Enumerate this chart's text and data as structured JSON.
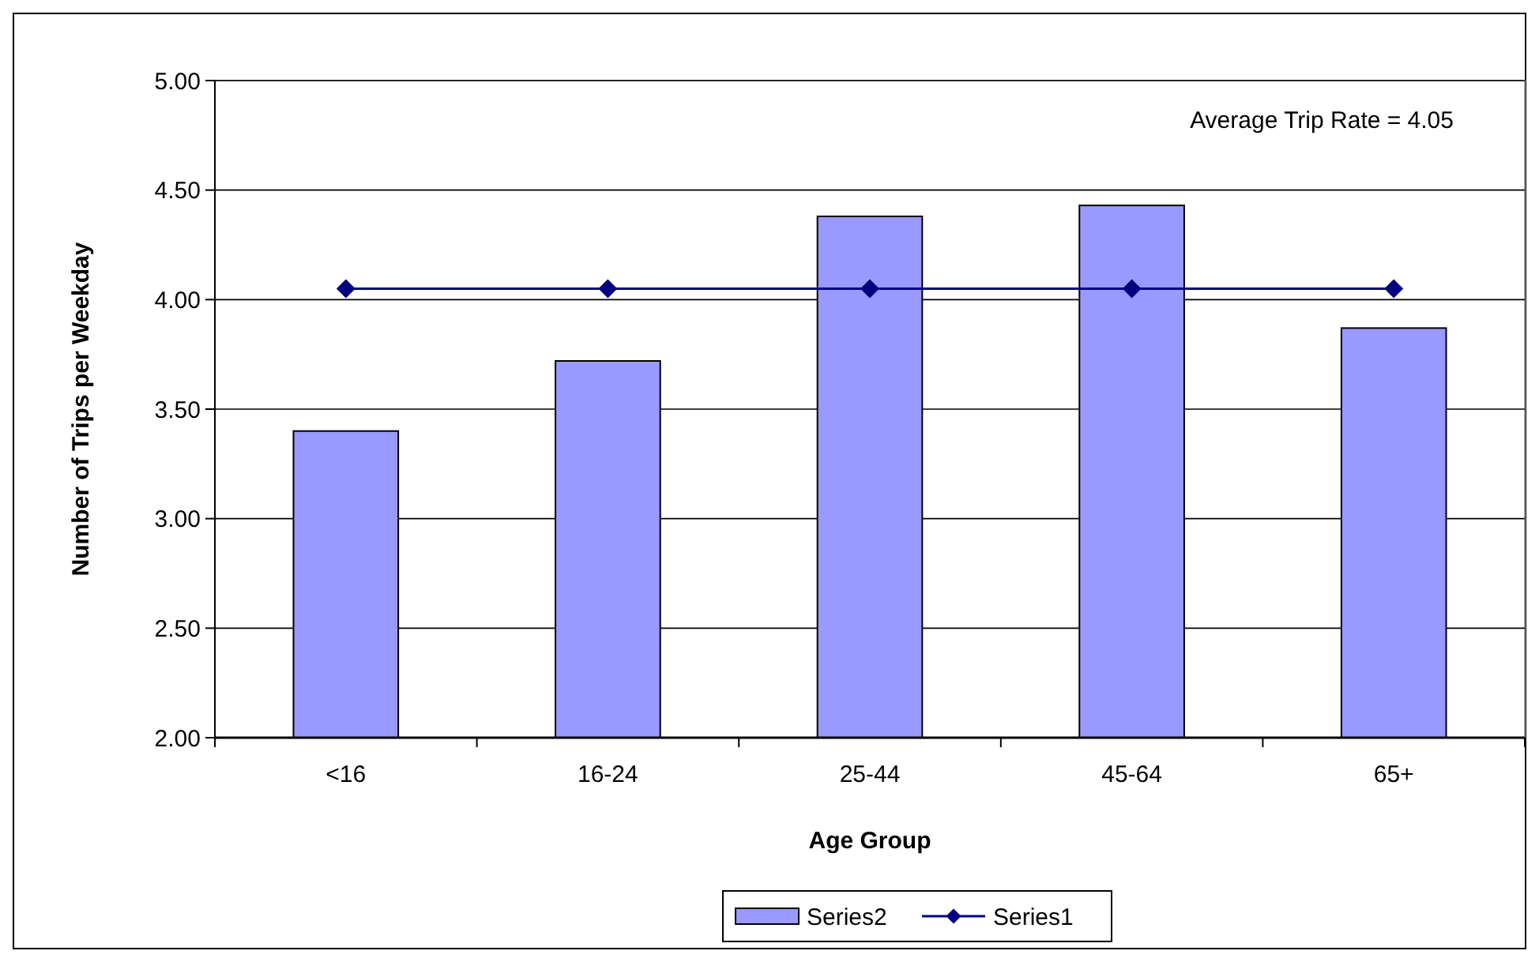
{
  "chart_data": {
    "type": "bar",
    "xlabel": "Age Group",
    "ylabel": "Number of Trips per Weekday",
    "categories": [
      "<16",
      "16-24",
      "25-44",
      "45-64",
      "65+"
    ],
    "series": [
      {
        "name": "Series2",
        "color": "#9999ff",
        "values": [
          3.4,
          3.72,
          4.38,
          4.43,
          3.87
        ]
      },
      {
        "name": "Series1",
        "type": "line",
        "color": "#000080",
        "marker": "diamond",
        "values": [
          4.05,
          4.05,
          4.05,
          4.05,
          4.05
        ]
      }
    ],
    "ylim": [
      2,
      5
    ],
    "yticks": [
      {
        "value": 2,
        "label": "2.00"
      },
      {
        "value": 2.5,
        "label": "2.50"
      },
      {
        "value": 3,
        "label": "3.00"
      },
      {
        "value": 3.5,
        "label": "3.50"
      },
      {
        "value": 4,
        "label": "4.00"
      },
      {
        "value": 4.5,
        "label": "4.50"
      },
      {
        "value": 5,
        "label": "5.00"
      }
    ],
    "grid": "y",
    "legend": "bottom",
    "annotations": [
      "Average Trip Rate = 4.05"
    ]
  }
}
